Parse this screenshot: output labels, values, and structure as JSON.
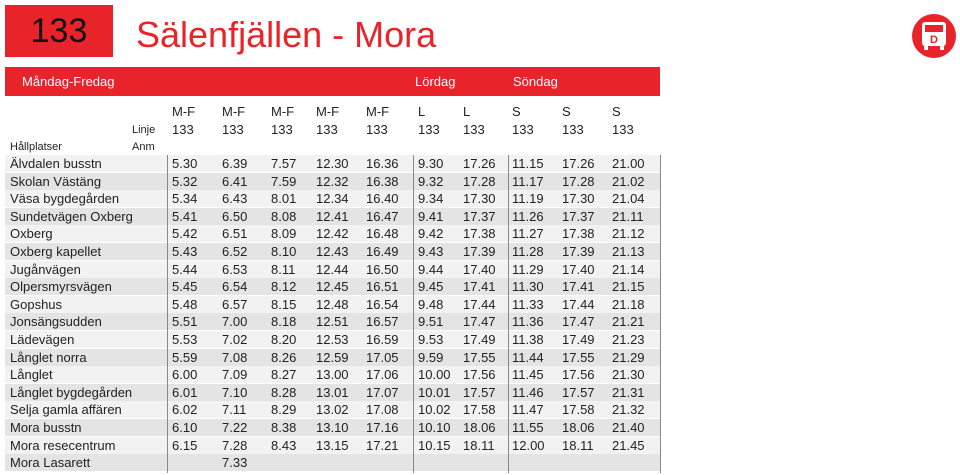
{
  "header": {
    "route": "133",
    "title": "Sälenfjällen - Mora"
  },
  "day_groups": [
    "Måndag-Fredag",
    "Lördag",
    "Söndag"
  ],
  "table": {
    "day_codes": [
      "M-F",
      "M-F",
      "M-F",
      "M-F",
      "M-F",
      "L",
      "L",
      "S",
      "S",
      "S"
    ],
    "line_label": "Linje",
    "lines": [
      "133",
      "133",
      "133",
      "133",
      "133",
      "133",
      "133",
      "133",
      "133",
      "133"
    ],
    "stop_header": "Hållplatser",
    "note_label": "Anm",
    "rows": [
      {
        "stop": "Älvdalen busstn",
        "times": [
          "5.30",
          "6.39",
          "7.57",
          "12.30",
          "16.36",
          "9.30",
          "17.26",
          "11.15",
          "17.26",
          "21.00"
        ]
      },
      {
        "stop": "Skolan Västäng",
        "times": [
          "5.32",
          "6.41",
          "7.59",
          "12.32",
          "16.38",
          "9.32",
          "17.28",
          "11.17",
          "17.28",
          "21.02"
        ]
      },
      {
        "stop": "Väsa bygdegården",
        "times": [
          "5.34",
          "6.43",
          "8.01",
          "12.34",
          "16.40",
          "9.34",
          "17.30",
          "11.19",
          "17.30",
          "21.04"
        ]
      },
      {
        "stop": "Sundetvägen Oxberg",
        "times": [
          "5.41",
          "6.50",
          "8.08",
          "12.41",
          "16.47",
          "9.41",
          "17.37",
          "11.26",
          "17.37",
          "21.11"
        ]
      },
      {
        "stop": "Oxberg",
        "times": [
          "5.42",
          "6.51",
          "8.09",
          "12.42",
          "16.48",
          "9.42",
          "17.38",
          "11.27",
          "17.38",
          "21.12"
        ]
      },
      {
        "stop": "Oxberg kapellet",
        "times": [
          "5.43",
          "6.52",
          "8.10",
          "12.43",
          "16.49",
          "9.43",
          "17.39",
          "11.28",
          "17.39",
          "21.13"
        ]
      },
      {
        "stop": "Jugånvägen",
        "times": [
          "5.44",
          "6.53",
          "8.11",
          "12.44",
          "16.50",
          "9.44",
          "17.40",
          "11.29",
          "17.40",
          "21.14"
        ]
      },
      {
        "stop": "Olpersmyrsvägen",
        "times": [
          "5.45",
          "6.54",
          "8.12",
          "12.45",
          "16.51",
          "9.45",
          "17.41",
          "11.30",
          "17.41",
          "21.15"
        ]
      },
      {
        "stop": "Gopshus",
        "times": [
          "5.48",
          "6.57",
          "8.15",
          "12.48",
          "16.54",
          "9.48",
          "17.44",
          "11.33",
          "17.44",
          "21.18"
        ]
      },
      {
        "stop": "Jonsängsudden",
        "times": [
          "5.51",
          "7.00",
          "8.18",
          "12.51",
          "16.57",
          "9.51",
          "17.47",
          "11.36",
          "17.47",
          "21.21"
        ]
      },
      {
        "stop": "Lädevägen",
        "times": [
          "5.53",
          "7.02",
          "8.20",
          "12.53",
          "16.59",
          "9.53",
          "17.49",
          "11.38",
          "17.49",
          "21.23"
        ]
      },
      {
        "stop": "Långlet norra",
        "times": [
          "5.59",
          "7.08",
          "8.26",
          "12.59",
          "17.05",
          "9.59",
          "17.55",
          "11.44",
          "17.55",
          "21.29"
        ]
      },
      {
        "stop": "Långlet",
        "times": [
          "6.00",
          "7.09",
          "8.27",
          "13.00",
          "17.06",
          "10.00",
          "17.56",
          "11.45",
          "17.56",
          "21.30"
        ]
      },
      {
        "stop": "Långlet bygdegården",
        "times": [
          "6.01",
          "7.10",
          "8.28",
          "13.01",
          "17.07",
          "10.01",
          "17.57",
          "11.46",
          "17.57",
          "21.31"
        ]
      },
      {
        "stop": "Selja gamla affären",
        "times": [
          "6.02",
          "7.11",
          "8.29",
          "13.02",
          "17.08",
          "10.02",
          "17.58",
          "11.47",
          "17.58",
          "21.32"
        ]
      },
      {
        "stop": "Mora busstn",
        "times": [
          "6.10",
          "7.22",
          "8.38",
          "13.10",
          "17.16",
          "10.10",
          "18.06",
          "11.55",
          "18.06",
          "21.40"
        ]
      },
      {
        "stop": "Mora resecentrum",
        "times": [
          "6.15",
          "7.28",
          "8.43",
          "13.15",
          "17.21",
          "10.15",
          "18.11",
          "12.00",
          "18.11",
          "21.45"
        ]
      },
      {
        "stop": "Mora Lasarett",
        "times": [
          null,
          "7.33",
          null,
          null,
          null,
          null,
          null,
          null,
          null,
          null
        ]
      }
    ]
  }
}
